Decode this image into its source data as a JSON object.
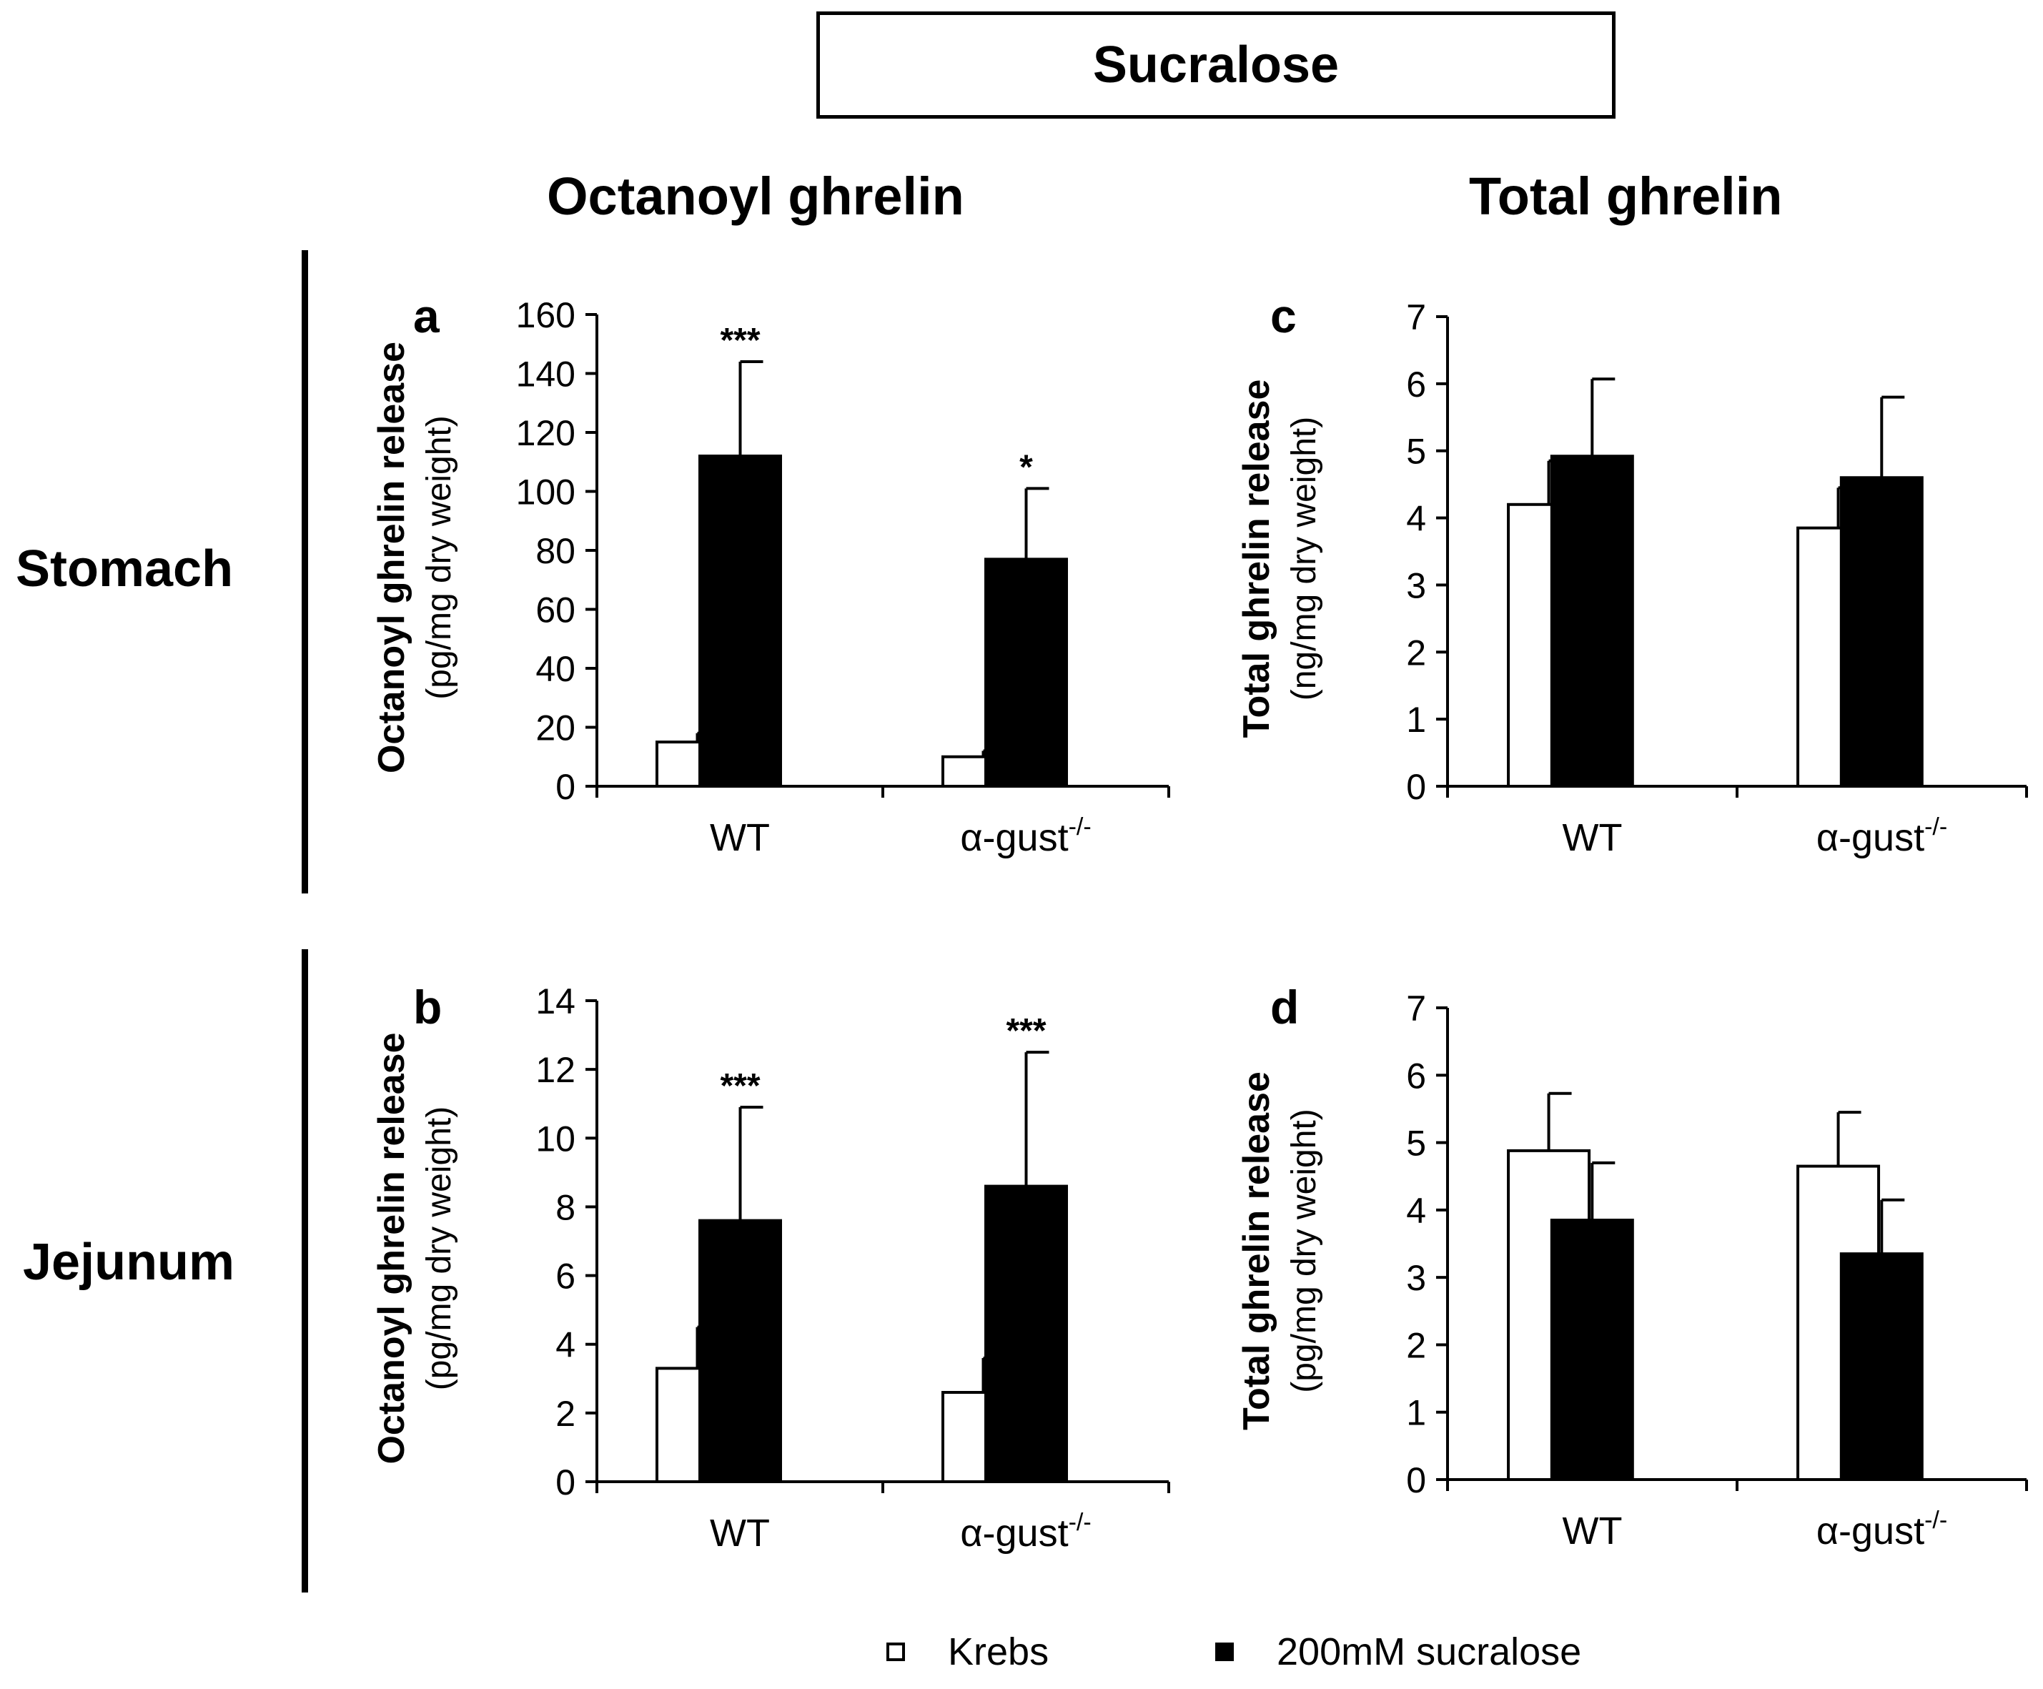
{
  "figure_title": "Sucralose",
  "column_titles": [
    "Octanoyl ghrelin",
    "Total ghrelin"
  ],
  "row_labels": [
    "Stomach",
    "Jejunum"
  ],
  "legend": [
    {
      "label": "Krebs",
      "color": "#ffffff"
    },
    {
      "label": "200mM sucralose",
      "color": "#000000"
    }
  ],
  "chart_data": [
    {
      "panel": "a",
      "type": "bar",
      "ylabel_main": "Octanoyl ghrelin release",
      "ylabel_sub": "(pg/mg dry weight)",
      "ylim": [
        0,
        160
      ],
      "yticks": [
        "0",
        "20",
        "40",
        "60",
        "80",
        "100",
        "120",
        "140",
        "160"
      ],
      "categories": [
        "WT",
        "α-gust-/-"
      ],
      "category_labels": [
        {
          "base": "WT",
          "sup": ""
        },
        {
          "base": "α-gust",
          "sup": "-/-"
        }
      ],
      "series": [
        {
          "name": "Krebs",
          "values": [
            15,
            10
          ],
          "errors": [
            3,
            2
          ],
          "sig": [
            "",
            ""
          ]
        },
        {
          "name": "200mM sucralose",
          "values": [
            112,
            77
          ],
          "errors": [
            32,
            24
          ],
          "sig": [
            "***",
            "*"
          ]
        }
      ]
    },
    {
      "panel": "b",
      "type": "bar",
      "ylabel_main": "Octanoyl ghrelin release",
      "ylabel_sub": "(pg/mg dry weight)",
      "ylim": [
        0,
        14
      ],
      "yticks": [
        "0",
        "2",
        "4",
        "6",
        "8",
        "10",
        "12",
        "14"
      ],
      "categories": [
        "WT",
        "α-gust-/-"
      ],
      "category_labels": [
        {
          "base": "WT",
          "sup": ""
        },
        {
          "base": "α-gust",
          "sup": "-/-"
        }
      ],
      "series": [
        {
          "name": "Krebs",
          "values": [
            3.3,
            2.6
          ],
          "errors": [
            1.2,
            1.0
          ],
          "sig": [
            "",
            ""
          ]
        },
        {
          "name": "200mM sucralose",
          "values": [
            7.6,
            8.6
          ],
          "errors": [
            3.3,
            3.9
          ],
          "sig": [
            "***",
            "***"
          ]
        }
      ]
    },
    {
      "panel": "c",
      "type": "bar",
      "ylabel_main": "Total ghrelin release",
      "ylabel_sub": "(ng/mg dry weight)",
      "ylim": [
        0,
        7
      ],
      "yticks": [
        "0",
        "1",
        "2",
        "3",
        "4",
        "5",
        "6",
        "7"
      ],
      "categories": [
        "WT",
        "α-gust-/-"
      ],
      "category_labels": [
        {
          "base": "WT",
          "sup": ""
        },
        {
          "base": "α-gust",
          "sup": "-/-"
        }
      ],
      "series": [
        {
          "name": "Krebs",
          "values": [
            4.2,
            3.85
          ],
          "errors": [
            0.65,
            0.6
          ],
          "sig": [
            "",
            ""
          ]
        },
        {
          "name": "200mM sucralose",
          "values": [
            4.92,
            4.6
          ],
          "errors": [
            1.15,
            1.2
          ],
          "sig": [
            "",
            ""
          ]
        }
      ]
    },
    {
      "panel": "d",
      "type": "bar",
      "ylabel_main": "Total ghrelin release",
      "ylabel_sub": "(pg/mg dry weight)",
      "ylim": [
        0,
        7
      ],
      "yticks": [
        "0",
        "1",
        "2",
        "3",
        "4",
        "5",
        "6",
        "7"
      ],
      "categories": [
        "WT",
        "α-gust-/-"
      ],
      "category_labels": [
        {
          "base": "WT",
          "sup": ""
        },
        {
          "base": "α-gust",
          "sup": "-/-"
        }
      ],
      "series": [
        {
          "name": "Krebs",
          "values": [
            4.88,
            4.65
          ],
          "errors": [
            0.85,
            0.8
          ],
          "sig": [
            "",
            ""
          ]
        },
        {
          "name": "200mM sucralose",
          "values": [
            3.85,
            3.35
          ],
          "errors": [
            0.85,
            0.8
          ],
          "sig": [
            "",
            ""
          ]
        }
      ]
    }
  ]
}
